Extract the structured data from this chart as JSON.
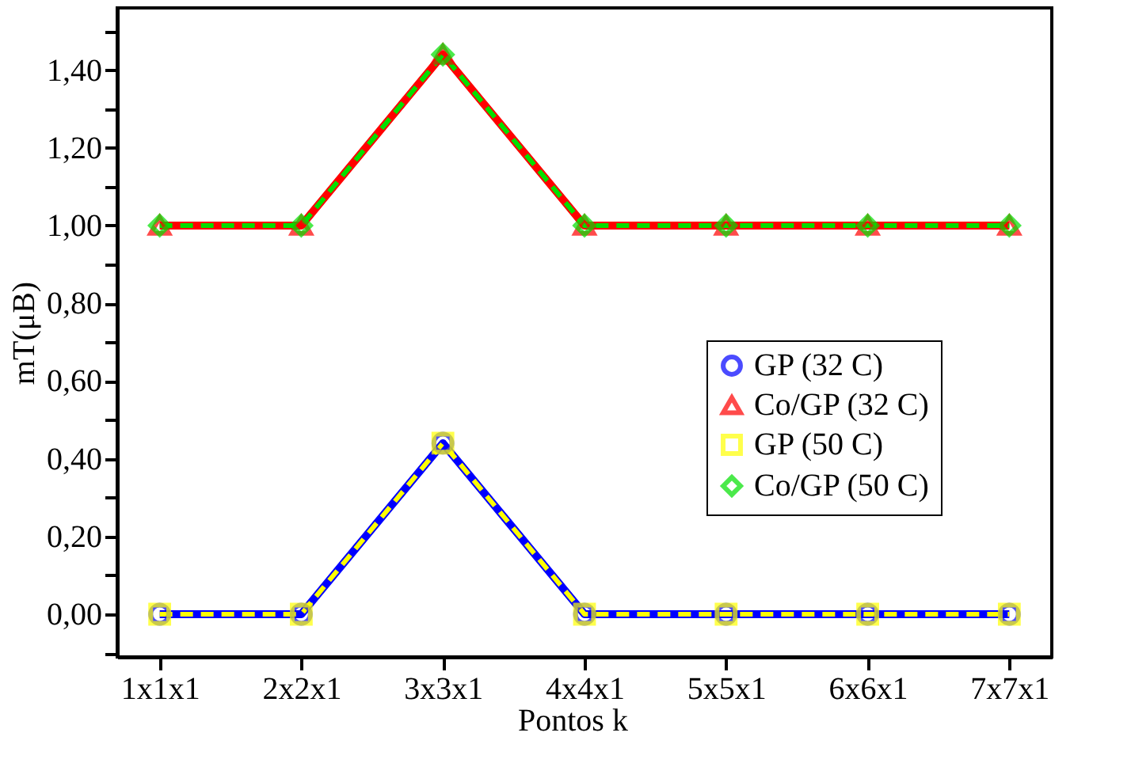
{
  "chart_data": {
    "type": "line",
    "xlabel": "Pontos k⃗",
    "ylabel": "mT(μB)",
    "categories": [
      "1x1x1",
      "2x2x1",
      "3x3x1",
      "4x4x1",
      "5x5x1",
      "6x6x1",
      "7x7x1"
    ],
    "ylim": [
      -0.11,
      1.56
    ],
    "yticks": [
      {
        "value": -0.1,
        "label": null
      },
      {
        "value": 0,
        "label": "0,00"
      },
      {
        "value": 0.1,
        "label": null
      },
      {
        "value": 0.2,
        "label": "0,20"
      },
      {
        "value": 0.3,
        "label": null
      },
      {
        "value": 0.4,
        "label": "0,40"
      },
      {
        "value": 0.5,
        "label": null
      },
      {
        "value": 0.6,
        "label": "0,60"
      },
      {
        "value": 0.7,
        "label": null
      },
      {
        "value": 0.8,
        "label": "0,80"
      },
      {
        "value": 0.9,
        "label": null
      },
      {
        "value": 1.0,
        "label": "1,00"
      },
      {
        "value": 1.1,
        "label": null
      },
      {
        "value": 1.2,
        "label": "1,20"
      },
      {
        "value": 1.3,
        "label": null
      },
      {
        "value": 1.4,
        "label": "1,40"
      },
      {
        "value": 1.5,
        "label": null
      }
    ],
    "grid": false,
    "legend": "right",
    "series": [
      {
        "name": "GP (32 C)",
        "color": "#0000ff",
        "marker": "circle",
        "line_style": "solid",
        "values": [
          0,
          0,
          0.44,
          0,
          0,
          0,
          0
        ]
      },
      {
        "name": "Co/GP (32 C)",
        "color": "#ff0000",
        "marker": "triangle",
        "line_style": "solid",
        "values": [
          1,
          1,
          1.44,
          1,
          1,
          1,
          1
        ]
      },
      {
        "name": "GP (50 C)",
        "color": "#ffff00",
        "marker": "square",
        "line_style": "dashed",
        "values": [
          0,
          0,
          0.44,
          0,
          0,
          0,
          0
        ]
      },
      {
        "name": "Co/GP (50 C)",
        "color": "#00e000",
        "marker": "diamond",
        "line_style": "dashed",
        "values": [
          1,
          1,
          1.44,
          1,
          1,
          1,
          1
        ]
      }
    ]
  }
}
